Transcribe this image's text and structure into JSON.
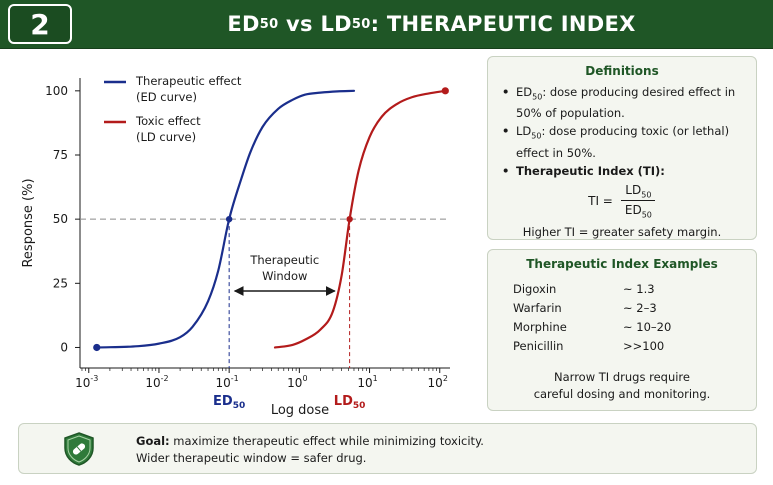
{
  "header": {
    "number": "2",
    "title_parts": [
      "ED",
      "50",
      " vs ",
      "LD",
      "50",
      ": THERAPEUTIC INDEX"
    ]
  },
  "colors": {
    "header_bg": "#1f5626",
    "ed_curve": "#1a2e8c",
    "ld_curve": "#b31b1b",
    "accent_green": "#1f5626"
  },
  "chart_data": {
    "type": "line",
    "title": "",
    "xlabel": "Log dose",
    "ylabel": "Response (%)",
    "x_scale": "log",
    "xlim": [
      0.00075,
      140
    ],
    "ylim": [
      -8,
      105
    ],
    "x_ticks": [
      0.001,
      0.01,
      0.1,
      1,
      10,
      100
    ],
    "x_tick_labels": [
      [
        "10",
        "-3"
      ],
      [
        "10",
        "-2"
      ],
      [
        "10",
        "-1"
      ],
      [
        "10",
        "0"
      ],
      [
        "10",
        "1"
      ],
      [
        "10",
        "2"
      ]
    ],
    "y_ticks": [
      0,
      25,
      50,
      75,
      100
    ],
    "legend": {
      "placement": "top-left"
    },
    "series": [
      {
        "name": "Therapeutic effect (ED curve)",
        "legend_lines": [
          "Therapeutic effect",
          "(ED curve)"
        ],
        "color": "#1a2e8c",
        "x": [
          0.0013,
          0.005,
          0.01,
          0.02,
          0.03,
          0.05,
          0.07,
          0.1,
          0.15,
          0.2,
          0.3,
          0.5,
          0.8,
          1.2,
          2,
          3.5,
          6
        ],
        "y": [
          0,
          0.5,
          1.5,
          4,
          8,
          18,
          30,
          50,
          66,
          76,
          86,
          93,
          96.5,
          98.5,
          99.3,
          99.8,
          100
        ]
      },
      {
        "name": "Toxic effect (LD curve)",
        "legend_lines": [
          "Toxic effect",
          "(LD curve)"
        ],
        "color": "#b31b1b",
        "x": [
          0.45,
          0.8,
          1.2,
          2,
          3,
          4,
          5.2,
          7,
          10,
          15,
          25,
          40,
          70,
          120
        ],
        "y": [
          0,
          1,
          3,
          7,
          14,
          28,
          50,
          69,
          82,
          90,
          95,
          97.5,
          99,
          100
        ]
      }
    ],
    "markers": [
      {
        "label": [
          "ED",
          "50"
        ],
        "x": 0.1,
        "y": 50,
        "color": "#1a2e8c"
      },
      {
        "label": [
          "LD",
          "50"
        ],
        "x": 5.2,
        "y": 50,
        "color": "#b31b1b"
      }
    ],
    "endpoints": [
      {
        "x": 0.0013,
        "y": 0,
        "color": "#1a2e8c"
      },
      {
        "x": 120,
        "y": 100,
        "color": "#b31b1b"
      }
    ],
    "reference_line_y": 50,
    "annotation": {
      "lines": [
        "Therapeutic",
        "Window"
      ],
      "arrow_from_x": 0.12,
      "arrow_to_x": 3.2,
      "arrow_y": 22
    }
  },
  "definitions": {
    "title": "Definitions",
    "ed50": {
      "abbr": "ED",
      "sub": "50",
      "text": ": dose producing desired effect in 50% of population."
    },
    "ld50": {
      "abbr": "LD",
      "sub": "50",
      "text": ": dose producing toxic (or lethal) effect in 50%."
    },
    "ti_label": "Therapeutic Index (TI):",
    "formula": {
      "lhs": "TI =",
      "num": "LD",
      "num_sub": "50",
      "den": "ED",
      "den_sub": "50"
    },
    "note": "Higher TI = greater safety margin."
  },
  "examples": {
    "title": "Therapeutic Index Examples",
    "rows": [
      {
        "drug": "Digoxin",
        "value": "~ 1.3"
      },
      {
        "drug": "Warfarin",
        "value": "~ 2–3"
      },
      {
        "drug": "Morphine",
        "value": "~ 10–20"
      },
      {
        "drug": "Penicillin",
        "value": ">>100"
      }
    ],
    "note_lines": [
      "Narrow TI drugs require",
      "careful dosing and monitoring."
    ]
  },
  "goal": {
    "icon": "shield-pill-icon",
    "label": "Goal:",
    "text": " maximize therapeutic effect while minimizing toxicity.",
    "line2": "Wider therapeutic window = safer drug."
  }
}
